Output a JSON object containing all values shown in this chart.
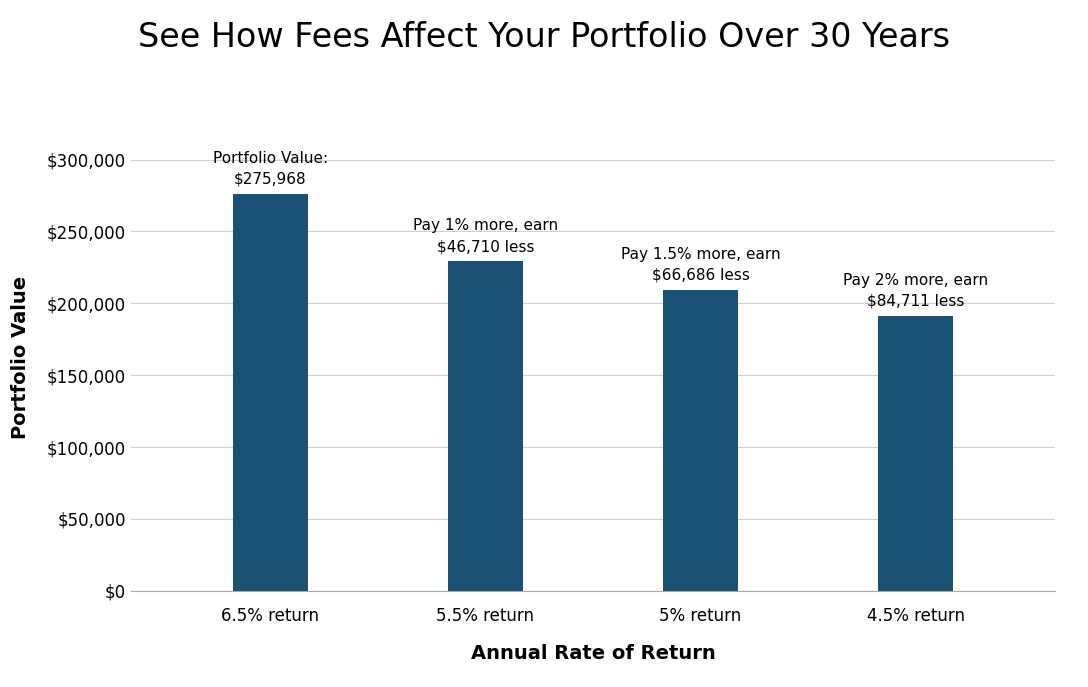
{
  "title": "See How Fees Affect Your Portfolio Over 30 Years",
  "xlabel": "Annual Rate of Return",
  "ylabel": "Portfolio Value",
  "categories": [
    "6.5% return",
    "5.5% return",
    "5% return",
    "4.5% return"
  ],
  "values": [
    275968,
    229258,
    209282,
    191257
  ],
  "bar_color": "#1a5276",
  "ylim": [
    0,
    325000
  ],
  "yticks": [
    0,
    50000,
    100000,
    150000,
    200000,
    250000,
    300000
  ],
  "annotations": [
    {
      "line1": "Portfolio Value:",
      "line2": "$275,968",
      "bar_index": 0
    },
    {
      "line1": "Pay 1% more, earn",
      "line2": "$46,710 less",
      "bar_index": 1
    },
    {
      "line1": "Pay 1.5% more, earn",
      "line2": "$66,686 less",
      "bar_index": 2
    },
    {
      "line1": "Pay 2% more, earn",
      "line2": "$84,711 less",
      "bar_index": 3
    }
  ],
  "background_color": "#ffffff",
  "grid_color": "#d0d0d0",
  "title_fontsize": 24,
  "axis_label_fontsize": 14,
  "tick_fontsize": 12,
  "annotation_fontsize": 11,
  "bar_width": 0.35
}
